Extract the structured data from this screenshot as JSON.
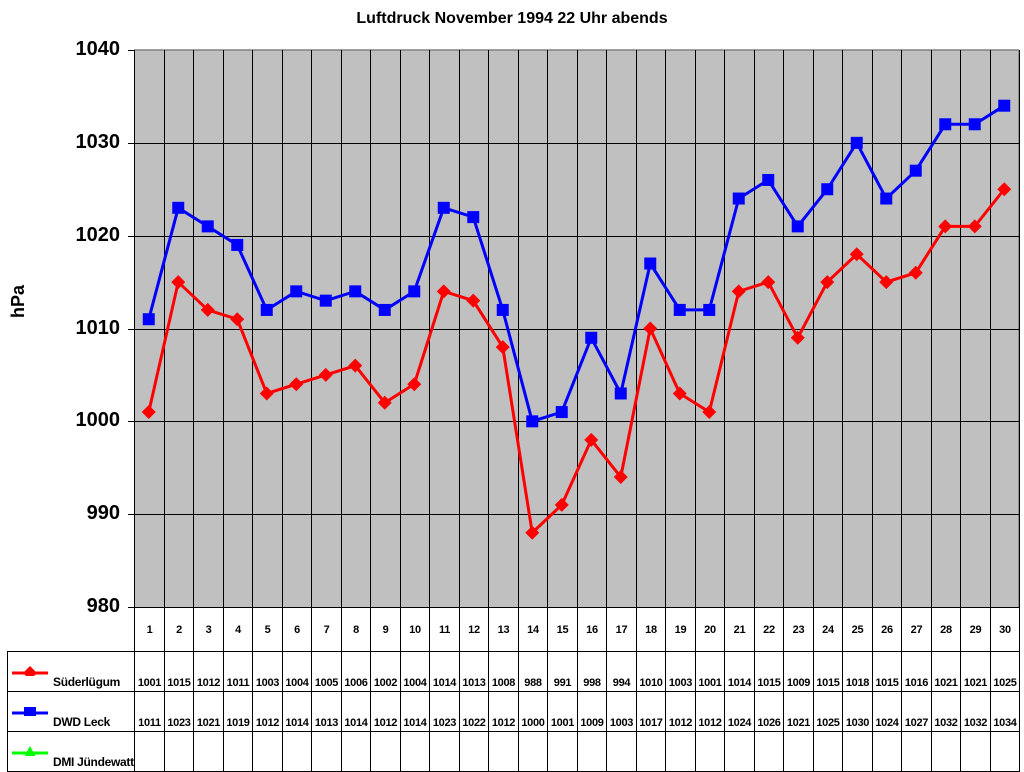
{
  "chart_data": {
    "type": "line",
    "title": "Luftdruck November 1994 22 Uhr abends",
    "xlabel": "",
    "ylabel": "hPa",
    "ylim": [
      980,
      1040
    ],
    "yticks": [
      980,
      990,
      1000,
      1010,
      1020,
      1030,
      1040
    ],
    "grid": true,
    "plot_background": "#c0c0c0",
    "legend_position": "data-table",
    "categories": [
      "1",
      "2",
      "3",
      "4",
      "5",
      "6",
      "7",
      "8",
      "9",
      "10",
      "11",
      "12",
      "13",
      "14",
      "15",
      "16",
      "17",
      "18",
      "19",
      "20",
      "21",
      "22",
      "23",
      "24",
      "25",
      "26",
      "27",
      "28",
      "29",
      "30"
    ],
    "series": [
      {
        "name": "Süderlügum",
        "color": "#ff0000",
        "marker": "diamond",
        "values": [
          1001,
          1015,
          1012,
          1011,
          1003,
          1004,
          1005,
          1006,
          1002,
          1004,
          1014,
          1013,
          1008,
          988,
          991,
          998,
          994,
          1010,
          1003,
          1001,
          1014,
          1015,
          1009,
          1015,
          1018,
          1015,
          1016,
          1021,
          1021,
          1025
        ]
      },
      {
        "name": "DWD Leck",
        "color": "#0000ff",
        "marker": "square",
        "values": [
          1011,
          1023,
          1021,
          1019,
          1012,
          1014,
          1013,
          1014,
          1012,
          1014,
          1023,
          1022,
          1012,
          1000,
          1001,
          1009,
          1003,
          1017,
          1012,
          1012,
          1024,
          1026,
          1021,
          1025,
          1030,
          1024,
          1027,
          1032,
          1032,
          1034
        ]
      },
      {
        "name": "DMI Jündewatt",
        "color": "#00ff00",
        "marker": "triangle",
        "values": []
      }
    ]
  }
}
